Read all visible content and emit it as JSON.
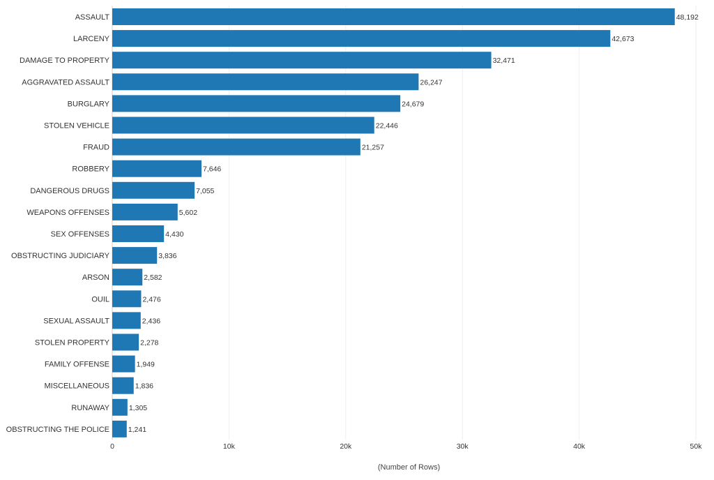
{
  "chart_data": {
    "type": "bar",
    "orientation": "horizontal",
    "categories": [
      "ASSAULT",
      "LARCENY",
      "DAMAGE TO PROPERTY",
      "AGGRAVATED ASSAULT",
      "BURGLARY",
      "STOLEN VEHICLE",
      "FRAUD",
      "ROBBERY",
      "DANGEROUS DRUGS",
      "WEAPONS OFFENSES",
      "SEX OFFENSES",
      "OBSTRUCTING JUDICIARY",
      "ARSON",
      "OUIL",
      "SEXUAL ASSAULT",
      "STOLEN PROPERTY",
      "FAMILY OFFENSE",
      "MISCELLANEOUS",
      "RUNAWAY",
      "OBSTRUCTING THE POLICE"
    ],
    "values": [
      48192,
      42673,
      32471,
      26247,
      24679,
      22446,
      21257,
      7646,
      7055,
      5602,
      4430,
      3836,
      2582,
      2476,
      2436,
      2278,
      1949,
      1836,
      1305,
      1241
    ],
    "value_labels": [
      "48,192",
      "42,673",
      "32,471",
      "26,247",
      "24,679",
      "22,446",
      "21,257",
      "7,646",
      "7,055",
      "5,602",
      "4,430",
      "3,836",
      "2,582",
      "2,476",
      "2,436",
      "2,278",
      "1,949",
      "1,836",
      "1,305",
      "1,241"
    ],
    "xlabel": "(Number of Rows)",
    "ylabel": "",
    "xlim": [
      0,
      50000
    ],
    "x_ticks": [
      0,
      10000,
      20000,
      30000,
      40000,
      50000
    ],
    "x_tick_labels": [
      "0",
      "10k",
      "20k",
      "30k",
      "40k",
      "50k"
    ],
    "grid": "vertical",
    "bar_color": "#1f77b4"
  }
}
